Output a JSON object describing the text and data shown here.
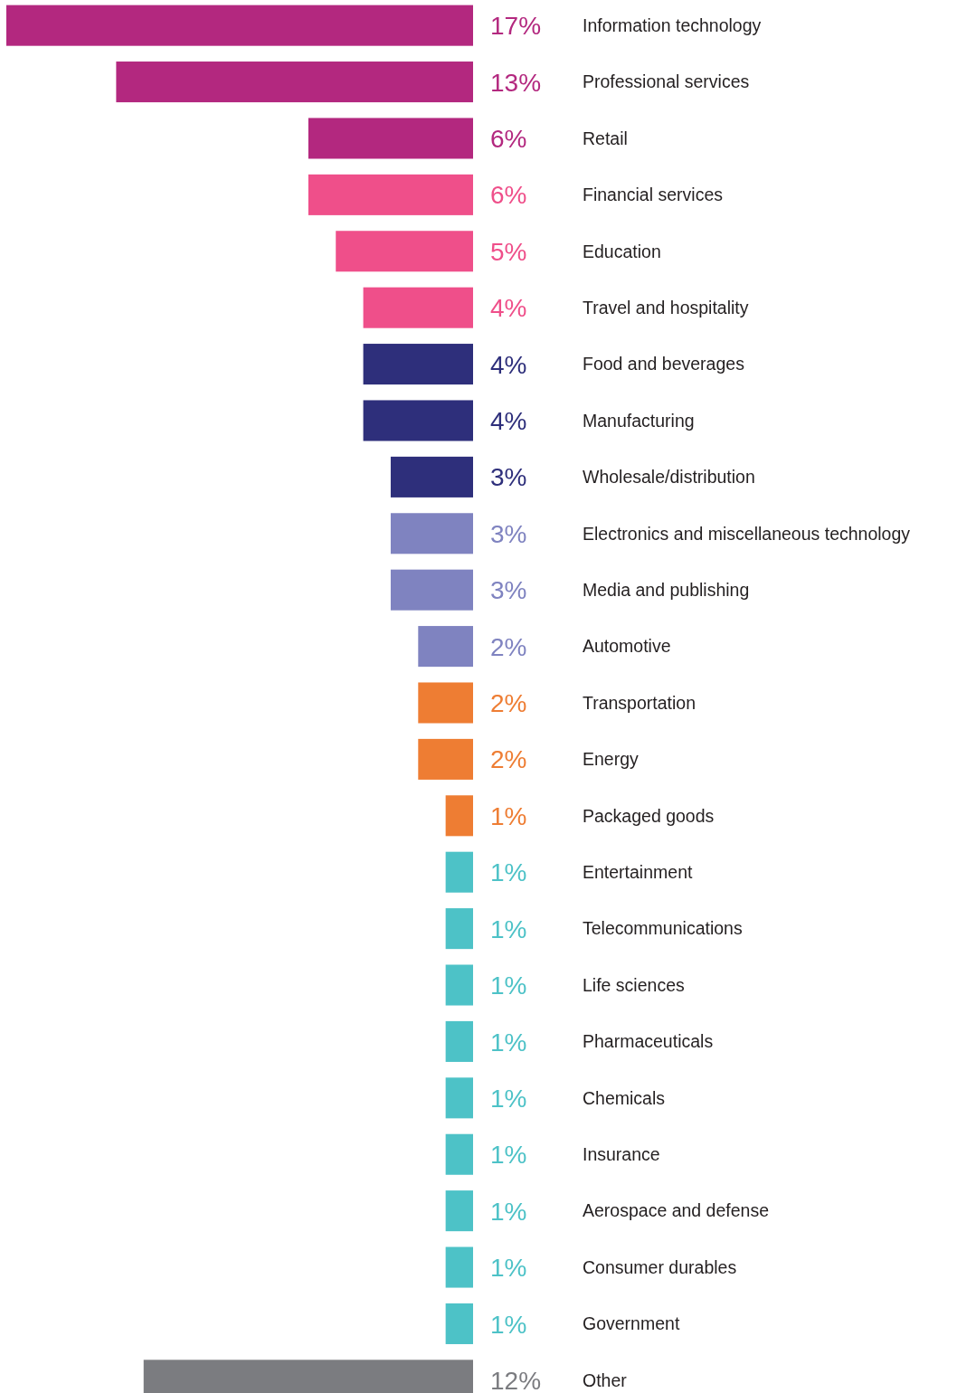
{
  "chart_data": {
    "type": "bar",
    "orientation": "horizontal",
    "data_labels": true,
    "categories": [
      "Information technology",
      "Professional services",
      "Retail",
      "Financial services",
      "Education",
      "Travel and hospitality",
      "Food and beverages",
      "Manufacturing",
      "Wholesale/distribution",
      "Electronics and miscellaneous technology",
      "Media and publishing",
      "Automotive",
      "Transportation",
      "Energy",
      "Packaged goods",
      "Entertainment",
      "Telecommunications",
      "Life sciences",
      "Pharmaceuticals",
      "Chemicals",
      "Insurance",
      "Aerospace and defense",
      "Consumer durables",
      "Government",
      "Other"
    ],
    "values": [
      17,
      13,
      6,
      6,
      5,
      4,
      4,
      4,
      3,
      3,
      3,
      2,
      2,
      2,
      1,
      1,
      1,
      1,
      1,
      1,
      1,
      1,
      1,
      1,
      12
    ],
    "value_labels": [
      "17%",
      "13%",
      "6%",
      "6%",
      "5%",
      "4%",
      "4%",
      "4%",
      "3%",
      "3%",
      "3%",
      "2%",
      "2%",
      "2%",
      "1%",
      "1%",
      "1%",
      "1%",
      "1%",
      "1%",
      "1%",
      "1%",
      "1%",
      "1%",
      "12%"
    ],
    "colors": [
      "#b3287f",
      "#b3287f",
      "#b3287f",
      "#ef4f8a",
      "#ef4f8a",
      "#ef4f8a",
      "#2e2f7b",
      "#2e2f7b",
      "#2e2f7b",
      "#7f83c0",
      "#7f83c0",
      "#7f83c0",
      "#ee7d33",
      "#ee7d33",
      "#ee7d33",
      "#4dc2c7",
      "#4dc2c7",
      "#4dc2c7",
      "#4dc2c7",
      "#4dc2c7",
      "#4dc2c7",
      "#4dc2c7",
      "#4dc2c7",
      "#4dc2c7",
      "#7b7c80"
    ]
  }
}
